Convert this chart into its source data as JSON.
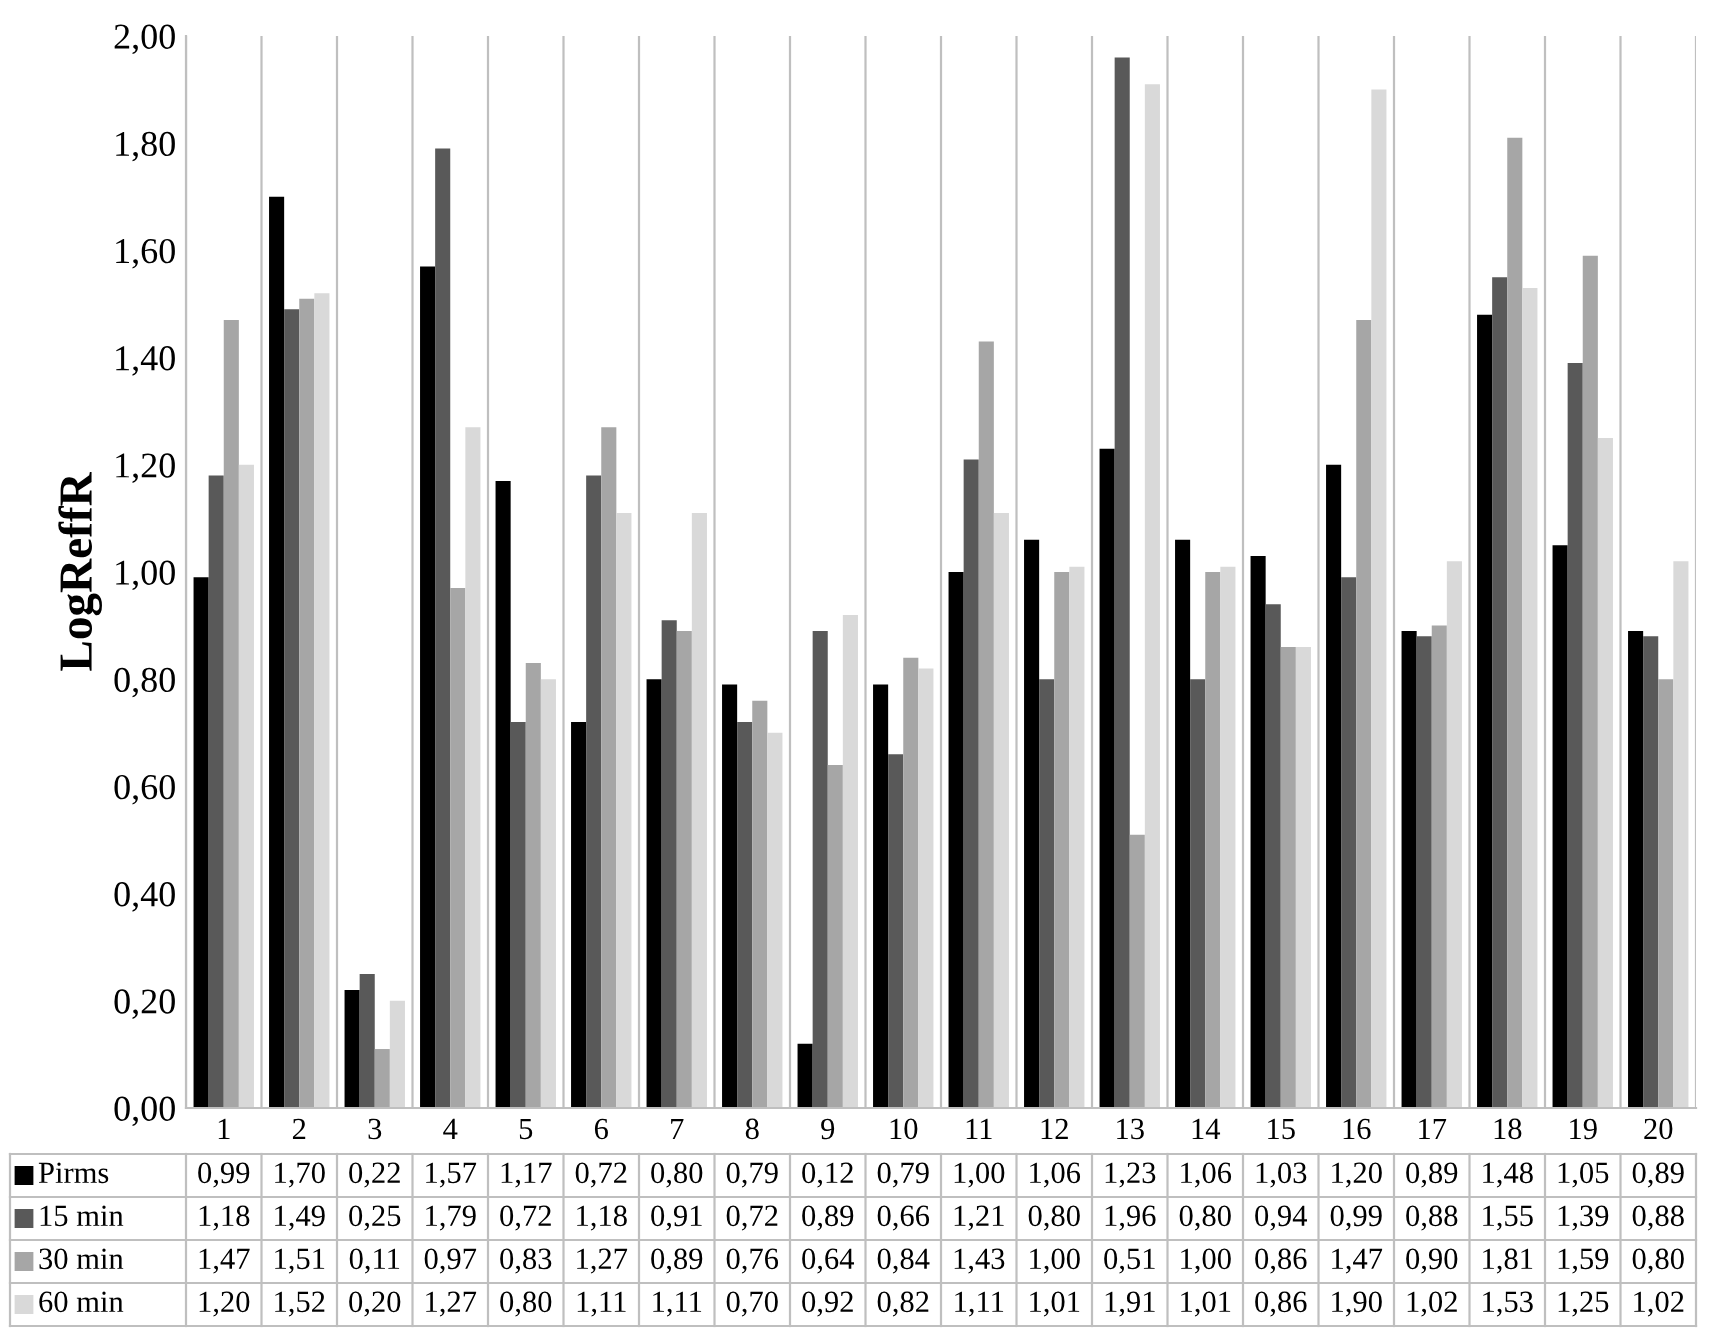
{
  "chart_data": {
    "type": "bar",
    "ylabel": "LogReffR",
    "categories": [
      "1",
      "2",
      "3",
      "4",
      "5",
      "6",
      "7",
      "8",
      "9",
      "10",
      "11",
      "12",
      "13",
      "14",
      "15",
      "16",
      "17",
      "18",
      "19",
      "20"
    ],
    "series": [
      {
        "name": "Pirms",
        "color": "#000000",
        "values": [
          0.99,
          1.7,
          0.22,
          1.57,
          1.17,
          0.72,
          0.8,
          0.79,
          0.12,
          0.79,
          1.0,
          1.06,
          1.23,
          1.06,
          1.03,
          1.2,
          0.89,
          1.48,
          1.05,
          0.89
        ],
        "value_labels": [
          "0,99",
          "1,70",
          "0,22",
          "1,57",
          "1,17",
          "0,72",
          "0,80",
          "0,79",
          "0,12",
          "0,79",
          "1,00",
          "1,06",
          "1,23",
          "1,06",
          "1,03",
          "1,20",
          "0,89",
          "1,48",
          "1,05",
          "0,89"
        ]
      },
      {
        "name": "15 min",
        "color": "#595959",
        "values": [
          1.18,
          1.49,
          0.25,
          1.79,
          0.72,
          1.18,
          0.91,
          0.72,
          0.89,
          0.66,
          1.21,
          0.8,
          1.96,
          0.8,
          0.94,
          0.99,
          0.88,
          1.55,
          1.39,
          0.88
        ],
        "value_labels": [
          "1,18",
          "1,49",
          "0,25",
          "1,79",
          "0,72",
          "1,18",
          "0,91",
          "0,72",
          "0,89",
          "0,66",
          "1,21",
          "0,80",
          "1,96",
          "0,80",
          "0,94",
          "0,99",
          "0,88",
          "1,55",
          "1,39",
          "0,88"
        ]
      },
      {
        "name": "30 min",
        "color": "#a6a6a6",
        "values": [
          1.47,
          1.51,
          0.11,
          0.97,
          0.83,
          1.27,
          0.89,
          0.76,
          0.64,
          0.84,
          1.43,
          1.0,
          0.51,
          1.0,
          0.86,
          1.47,
          0.9,
          1.81,
          1.59,
          0.8
        ],
        "value_labels": [
          "1,47",
          "1,51",
          "0,11",
          "0,97",
          "0,83",
          "1,27",
          "0,89",
          "0,76",
          "0,64",
          "0,84",
          "1,43",
          "1,00",
          "0,51",
          "1,00",
          "0,86",
          "1,47",
          "0,90",
          "1,81",
          "1,59",
          "0,80"
        ]
      },
      {
        "name": "60 min",
        "color": "#d9d9d9",
        "values": [
          1.2,
          1.52,
          0.2,
          1.27,
          0.8,
          1.11,
          1.11,
          0.7,
          0.92,
          0.82,
          1.11,
          1.01,
          1.91,
          1.01,
          0.86,
          1.9,
          1.02,
          1.53,
          1.25,
          1.02
        ],
        "value_labels": [
          "1,20",
          "1,52",
          "0,20",
          "1,27",
          "0,80",
          "1,11",
          "1,11",
          "0,70",
          "0,92",
          "0,82",
          "1,11",
          "1,01",
          "1,91",
          "1,01",
          "0,86",
          "1,90",
          "1,02",
          "1,53",
          "1,25",
          "1,02"
        ]
      }
    ],
    "ylim": [
      0,
      2
    ],
    "yticks": [
      {
        "value": 0,
        "label": "0,00"
      },
      {
        "value": 0.2,
        "label": "0,20"
      },
      {
        "value": 0.4,
        "label": "0,40"
      },
      {
        "value": 0.6,
        "label": "0,60"
      },
      {
        "value": 0.8,
        "label": "0,80"
      },
      {
        "value": 1.0,
        "label": "1,00"
      },
      {
        "value": 1.2,
        "label": "1,20"
      },
      {
        "value": 1.4,
        "label": "1,40"
      },
      {
        "value": 1.6,
        "label": "1,60"
      },
      {
        "value": 1.8,
        "label": "1,80"
      },
      {
        "value": 2.0,
        "label": "2,00"
      }
    ],
    "grid": "x",
    "legend": "bottom"
  }
}
